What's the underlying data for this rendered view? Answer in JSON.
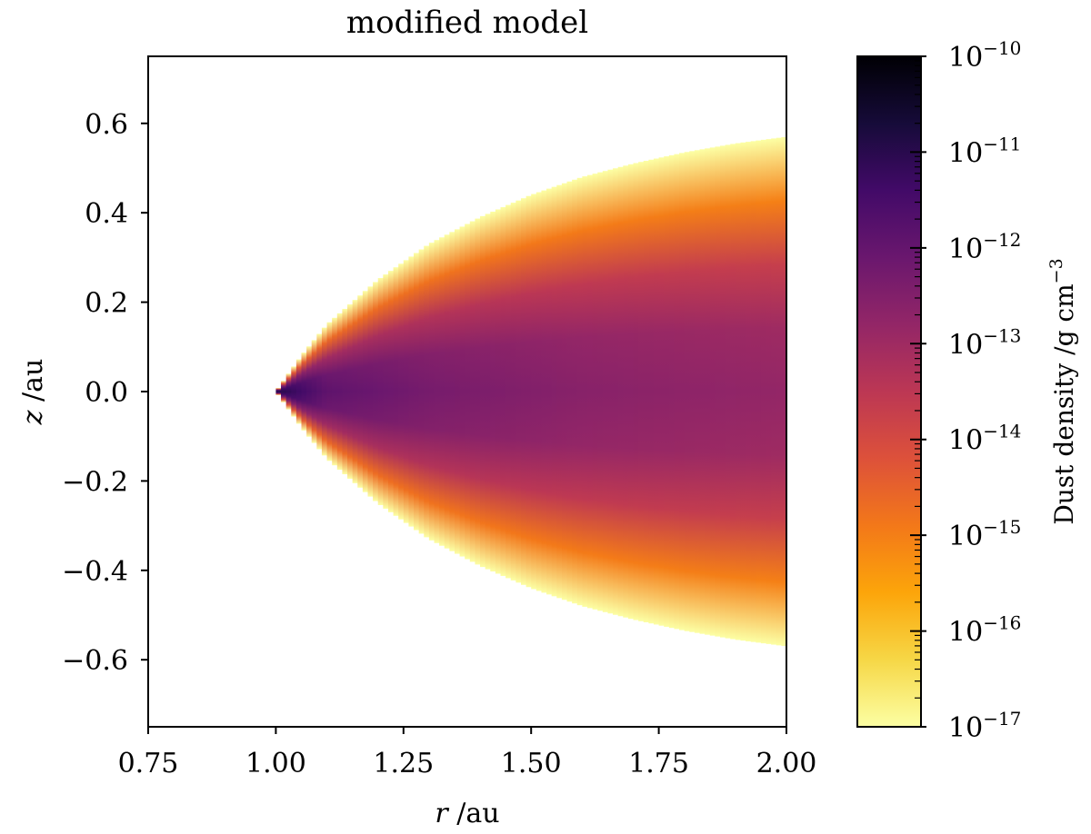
{
  "chart_data": {
    "type": "heatmap",
    "title": "modified model",
    "xlabel_var": "r",
    "xlabel_unit": " /au",
    "ylabel_var": "z",
    "ylabel_unit": " /au",
    "xlim": [
      0.75,
      2.0
    ],
    "ylim": [
      -0.75,
      0.75
    ],
    "xticks": [
      0.75,
      1.0,
      1.25,
      1.5,
      1.75,
      2.0
    ],
    "xtick_labels": [
      "0.75",
      "1.00",
      "1.25",
      "1.50",
      "1.75",
      "2.00"
    ],
    "yticks": [
      0.6,
      0.4,
      0.2,
      0.0,
      -0.2,
      -0.4,
      -0.6
    ],
    "ytick_labels": [
      "0.6",
      "0.4",
      "0.2",
      "0.0",
      "−0.2",
      "−0.4",
      "−0.6"
    ],
    "colorbar": {
      "label_main": "Dust density /g cm",
      "label_sup": "−3",
      "scale": "log",
      "range": [
        1e-17,
        1e-10
      ],
      "tick_base": "10",
      "tick_exponents": [
        "−10",
        "−11",
        "−12",
        "−13",
        "−14",
        "−15",
        "−16",
        "−17"
      ],
      "colormap": "inferno_r"
    },
    "disk": {
      "inner_radius": 1.0,
      "upper_boundary": [
        {
          "r": 1.0,
          "z": 0.0
        },
        {
          "r": 1.05,
          "z": 0.08
        },
        {
          "r": 1.1,
          "z": 0.15
        },
        {
          "r": 1.2,
          "z": 0.25
        },
        {
          "r": 1.3,
          "z": 0.33
        },
        {
          "r": 1.4,
          "z": 0.39
        },
        {
          "r": 1.5,
          "z": 0.44
        },
        {
          "r": 1.6,
          "z": 0.48
        },
        {
          "r": 1.7,
          "z": 0.51
        },
        {
          "r": 1.8,
          "z": 0.535
        },
        {
          "r": 1.9,
          "z": 0.555
        },
        {
          "r": 2.0,
          "z": 0.57
        }
      ],
      "midplane_density": [
        {
          "r": 1.0,
          "log_density": -10.9
        },
        {
          "r": 1.1,
          "log_density": -11.9
        },
        {
          "r": 1.3,
          "log_density": -12.3
        },
        {
          "r": 1.6,
          "log_density": -12.6
        },
        {
          "r": 2.0,
          "log_density": -12.8
        }
      ],
      "edge_log_density": -17.0
    }
  }
}
